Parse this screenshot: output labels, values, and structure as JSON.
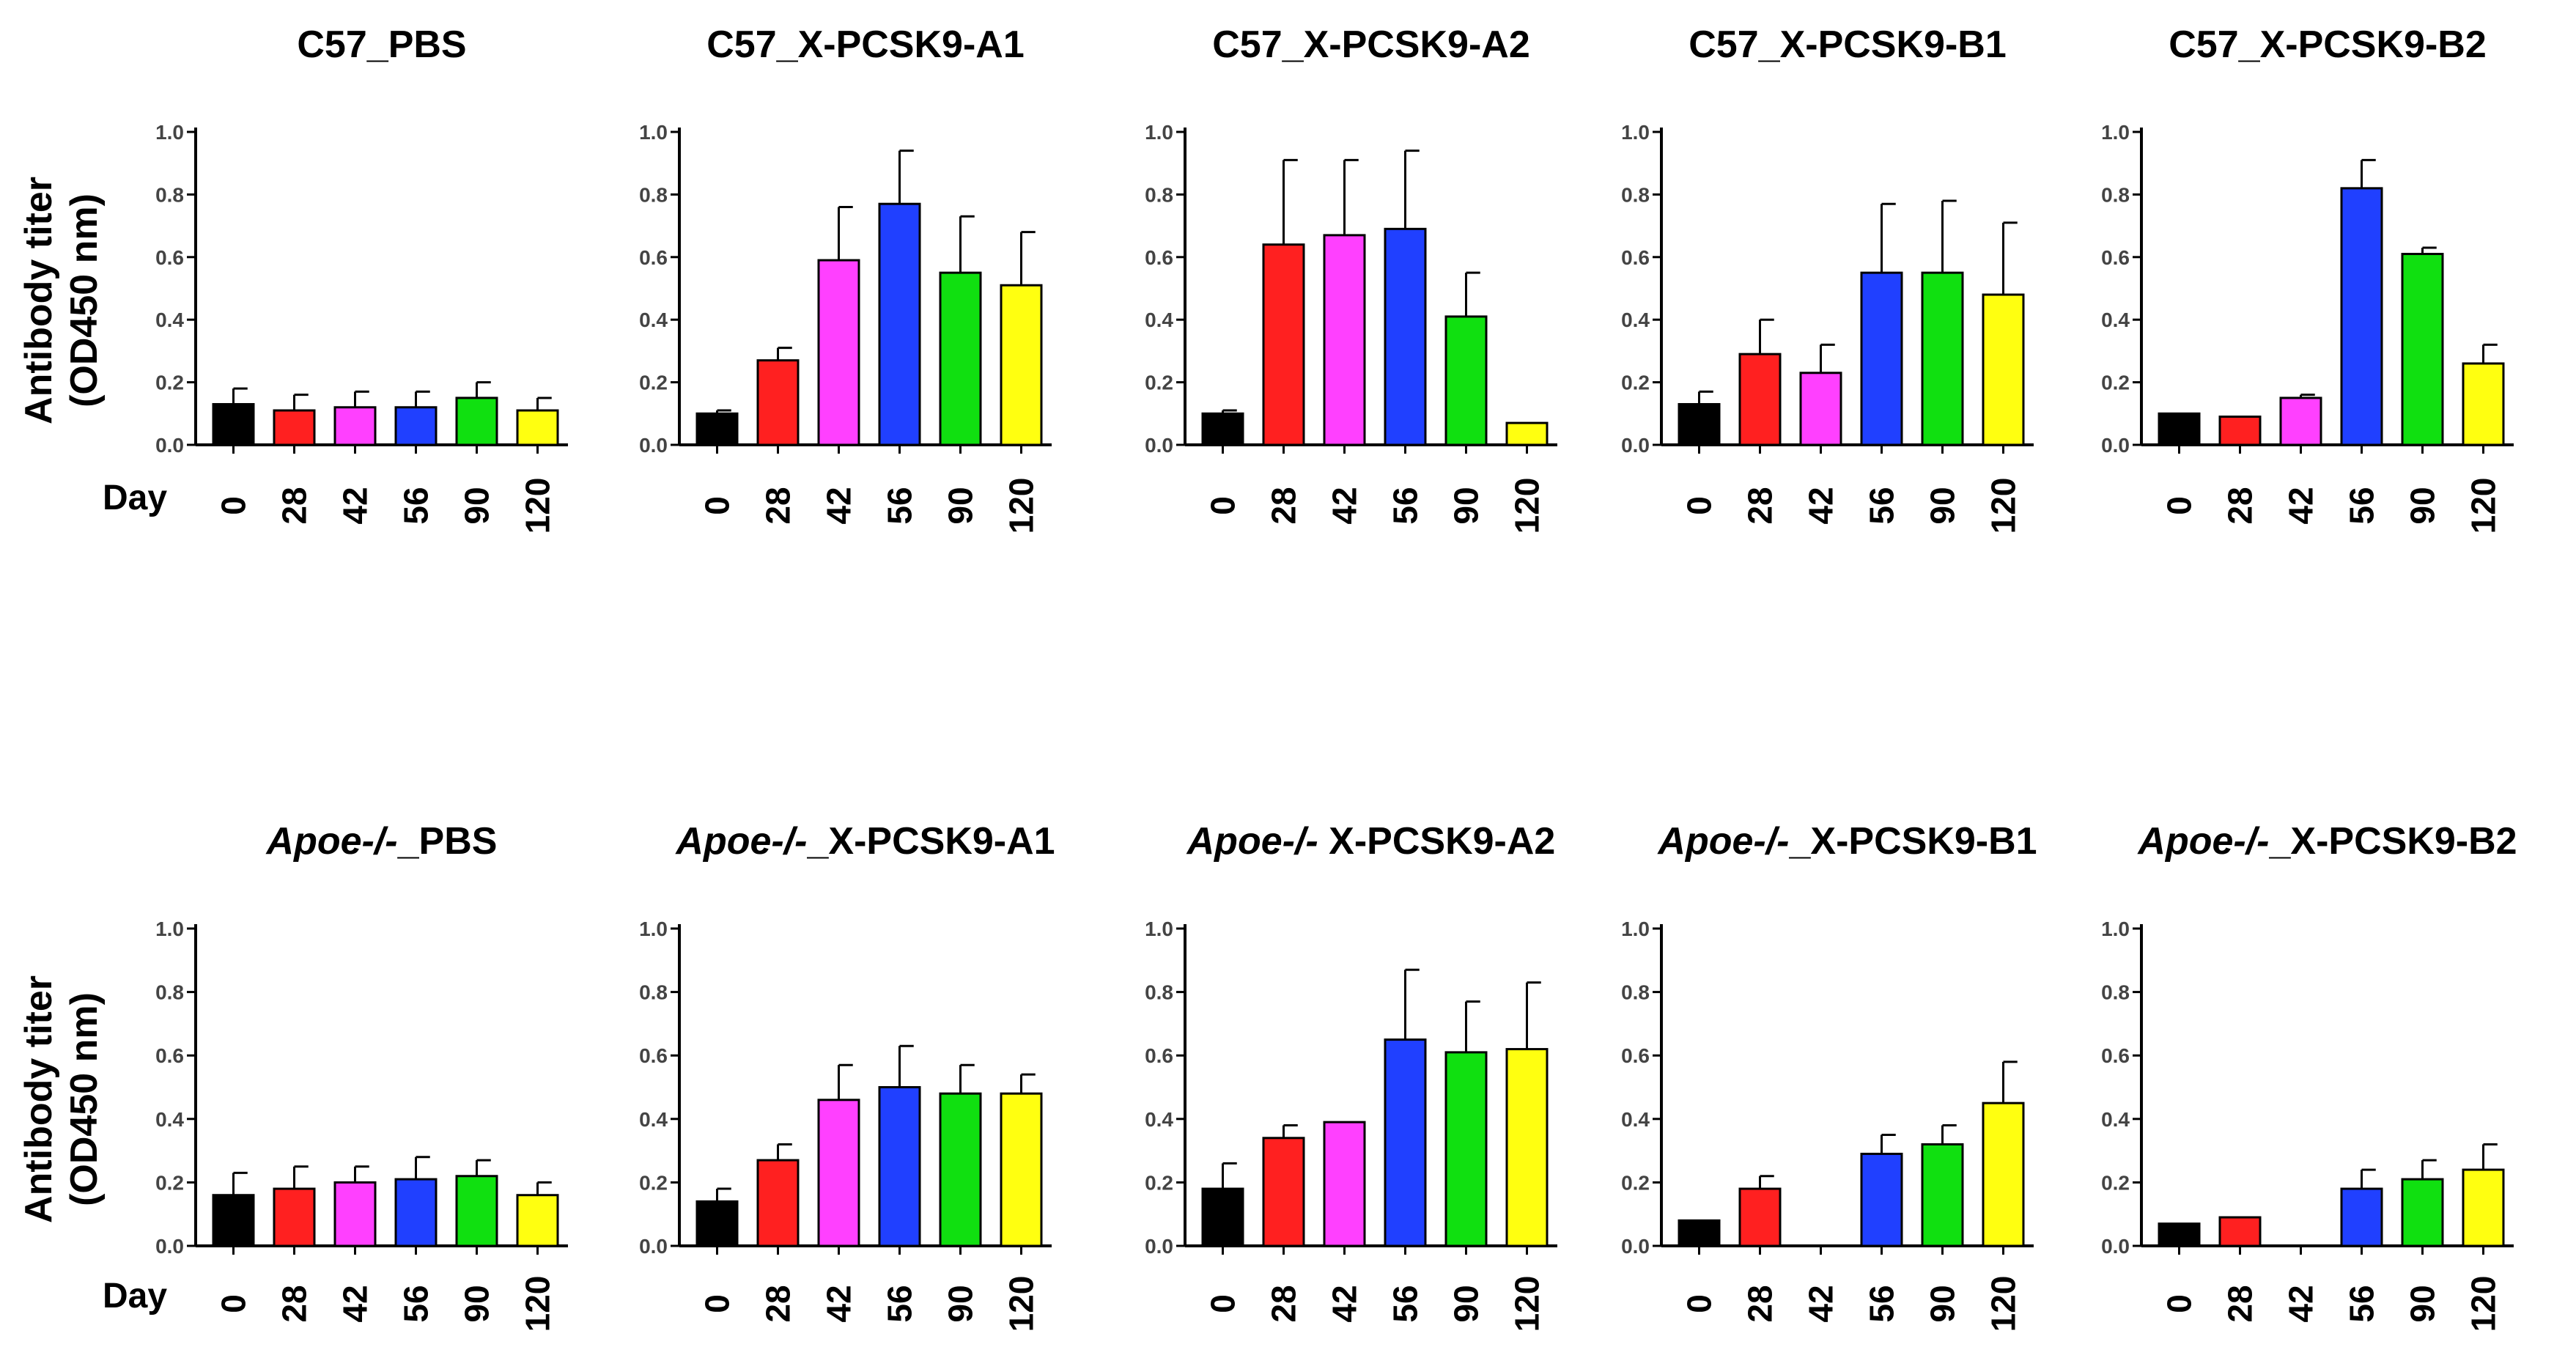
{
  "figure": {
    "ylabel_line1": "Antibody titer",
    "ylabel_line2": "(OD450 nm)",
    "day_label": "Day"
  },
  "chart_data": [
    {
      "type": "bar",
      "title": "C57_PBS",
      "title_italic_prefix": "",
      "title_rest": "C57_PBS",
      "categories": [
        "0",
        "28",
        "42",
        "56",
        "90",
        "120"
      ],
      "values": [
        0.13,
        0.11,
        0.12,
        0.12,
        0.15,
        0.11
      ],
      "errors": [
        0.05,
        0.05,
        0.05,
        0.05,
        0.05,
        0.04
      ],
      "ylim": [
        0,
        1.0
      ],
      "yticks": [
        "0.0",
        "0.2",
        "0.4",
        "0.6",
        "0.8",
        "1.0"
      ],
      "colors": [
        "#000000",
        "#ff2020",
        "#ff40ff",
        "#2040ff",
        "#10e010",
        "#ffff10"
      ]
    },
    {
      "type": "bar",
      "title": "C57_X-PCSK9-A1",
      "title_italic_prefix": "",
      "title_rest": "C57_X-PCSK9-A1",
      "categories": [
        "0",
        "28",
        "42",
        "56",
        "90",
        "120"
      ],
      "values": [
        0.1,
        0.27,
        0.59,
        0.77,
        0.55,
        0.51
      ],
      "errors": [
        0.01,
        0.04,
        0.17,
        0.17,
        0.18,
        0.17
      ],
      "ylim": [
        0,
        1.0
      ],
      "yticks": [
        "0.0",
        "0.2",
        "0.4",
        "0.6",
        "0.8",
        "1.0"
      ],
      "colors": [
        "#000000",
        "#ff2020",
        "#ff40ff",
        "#2040ff",
        "#10e010",
        "#ffff10"
      ]
    },
    {
      "type": "bar",
      "title": "C57_X-PCSK9-A2",
      "title_italic_prefix": "",
      "title_rest": "C57_X-PCSK9-A2",
      "categories": [
        "0",
        "28",
        "42",
        "56",
        "90",
        "120"
      ],
      "values": [
        0.1,
        0.64,
        0.67,
        0.69,
        0.41,
        0.07
      ],
      "errors": [
        0.01,
        0.27,
        0.24,
        0.25,
        0.14,
        0.0
      ],
      "ylim": [
        0,
        1.0
      ],
      "yticks": [
        "0.0",
        "0.2",
        "0.4",
        "0.6",
        "0.8",
        "1.0"
      ],
      "colors": [
        "#000000",
        "#ff2020",
        "#ff40ff",
        "#2040ff",
        "#10e010",
        "#ffff10"
      ]
    },
    {
      "type": "bar",
      "title": "C57_X-PCSK9-B1",
      "title_italic_prefix": "",
      "title_rest": "C57_X-PCSK9-B1",
      "categories": [
        "0",
        "28",
        "42",
        "56",
        "90",
        "120"
      ],
      "values": [
        0.13,
        0.29,
        0.23,
        0.55,
        0.55,
        0.48
      ],
      "errors": [
        0.04,
        0.11,
        0.09,
        0.22,
        0.23,
        0.23
      ],
      "ylim": [
        0,
        1.0
      ],
      "yticks": [
        "0.0",
        "0.2",
        "0.4",
        "0.6",
        "0.8",
        "1.0"
      ],
      "colors": [
        "#000000",
        "#ff2020",
        "#ff40ff",
        "#2040ff",
        "#10e010",
        "#ffff10"
      ]
    },
    {
      "type": "bar",
      "title": "C57_X-PCSK9-B2",
      "title_italic_prefix": "",
      "title_rest": "C57_X-PCSK9-B2",
      "categories": [
        "0",
        "28",
        "42",
        "56",
        "90",
        "120"
      ],
      "values": [
        0.1,
        0.09,
        0.15,
        0.82,
        0.61,
        0.26
      ],
      "errors": [
        0.0,
        0.0,
        0.01,
        0.09,
        0.02,
        0.06
      ],
      "ylim": [
        0,
        1.0
      ],
      "yticks": [
        "0.0",
        "0.2",
        "0.4",
        "0.6",
        "0.8",
        "1.0"
      ],
      "colors": [
        "#000000",
        "#ff2020",
        "#ff40ff",
        "#2040ff",
        "#10e010",
        "#ffff10"
      ]
    },
    {
      "type": "bar",
      "title": "Apoe-/-_PBS",
      "title_italic_prefix": "Apoe-/-",
      "title_rest": "_PBS",
      "categories": [
        "0",
        "28",
        "42",
        "56",
        "90",
        "120"
      ],
      "values": [
        0.16,
        0.18,
        0.2,
        0.21,
        0.22,
        0.16
      ],
      "errors": [
        0.07,
        0.07,
        0.05,
        0.07,
        0.05,
        0.04
      ],
      "ylim": [
        0,
        1.0
      ],
      "yticks": [
        "0.0",
        "0.2",
        "0.4",
        "0.6",
        "0.8",
        "1.0"
      ],
      "colors": [
        "#000000",
        "#ff2020",
        "#ff40ff",
        "#2040ff",
        "#10e010",
        "#ffff10"
      ]
    },
    {
      "type": "bar",
      "title": "Apoe-/-_X-PCSK9-A1",
      "title_italic_prefix": "Apoe-/-",
      "title_rest": "_X-PCSK9-A1",
      "categories": [
        "0",
        "28",
        "42",
        "56",
        "90",
        "120"
      ],
      "values": [
        0.14,
        0.27,
        0.46,
        0.5,
        0.48,
        0.48
      ],
      "errors": [
        0.04,
        0.05,
        0.11,
        0.13,
        0.09,
        0.06
      ],
      "ylim": [
        0,
        1.0
      ],
      "yticks": [
        "0.0",
        "0.2",
        "0.4",
        "0.6",
        "0.8",
        "1.0"
      ],
      "colors": [
        "#000000",
        "#ff2020",
        "#ff40ff",
        "#2040ff",
        "#10e010",
        "#ffff10"
      ]
    },
    {
      "type": "bar",
      "title": "Apoe-/- X-PCSK9-A2",
      "title_italic_prefix": "Apoe-/-",
      "title_rest": " X-PCSK9-A2",
      "categories": [
        "0",
        "28",
        "42",
        "56",
        "90",
        "120"
      ],
      "values": [
        0.18,
        0.34,
        0.39,
        0.65,
        0.61,
        0.62
      ],
      "errors": [
        0.08,
        0.04,
        0.0,
        0.22,
        0.16,
        0.21
      ],
      "ylim": [
        0,
        1.0
      ],
      "yticks": [
        "0.0",
        "0.2",
        "0.4",
        "0.6",
        "0.8",
        "1.0"
      ],
      "colors": [
        "#000000",
        "#ff2020",
        "#ff40ff",
        "#2040ff",
        "#10e010",
        "#ffff10"
      ]
    },
    {
      "type": "bar",
      "title": "Apoe-/-_X-PCSK9-B1",
      "title_italic_prefix": "Apoe-/-",
      "title_rest": "_X-PCSK9-B1",
      "categories": [
        "0",
        "28",
        "42",
        "56",
        "90",
        "120"
      ],
      "values": [
        0.08,
        0.18,
        0,
        0.29,
        0.32,
        0.45
      ],
      "errors": [
        0.0,
        0.04,
        0,
        0.06,
        0.06,
        0.13
      ],
      "ylim": [
        0,
        1.0
      ],
      "yticks": [
        "0.0",
        "0.2",
        "0.4",
        "0.6",
        "0.8",
        "1.0"
      ],
      "colors": [
        "#000000",
        "#ff2020",
        "#ff40ff",
        "#2040ff",
        "#10e010",
        "#ffff10"
      ]
    },
    {
      "type": "bar",
      "title": "Apoe-/-_X-PCSK9-B2",
      "title_italic_prefix": "Apoe-/-",
      "title_rest": "_X-PCSK9-B2",
      "categories": [
        "0",
        "28",
        "42",
        "56",
        "90",
        "120"
      ],
      "values": [
        0.07,
        0.09,
        0,
        0.18,
        0.21,
        0.24
      ],
      "errors": [
        0.0,
        0.0,
        0,
        0.06,
        0.06,
        0.08
      ],
      "ylim": [
        0,
        1.0
      ],
      "yticks": [
        "0.0",
        "0.2",
        "0.4",
        "0.6",
        "0.8",
        "1.0"
      ],
      "colors": [
        "#000000",
        "#ff2020",
        "#ff40ff",
        "#2040ff",
        "#10e010",
        "#ffff10"
      ]
    }
  ]
}
